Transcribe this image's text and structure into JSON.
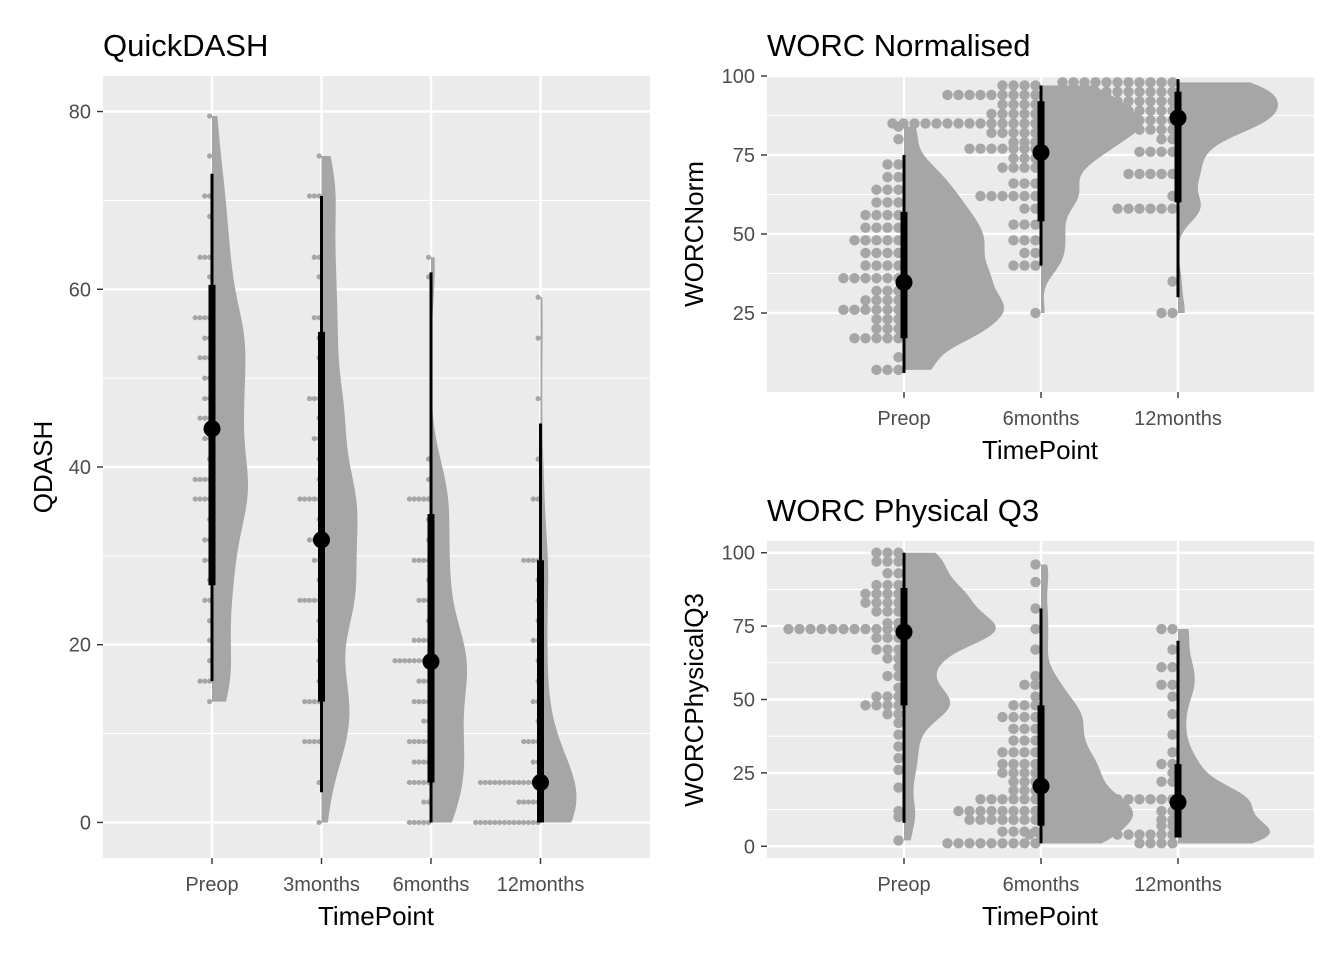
{
  "chart_data": [
    {
      "type": "raincloud",
      "title": "QuickDASH",
      "xlabel": "TimePoint",
      "ylabel": "QDASH",
      "categories": [
        "Preop",
        "3months",
        "6months",
        "12months"
      ],
      "yticks": [
        0,
        20,
        40,
        60,
        80
      ],
      "ylim": [
        -4,
        84
      ],
      "summary": [
        {
          "category": "Preop",
          "median": 44.3,
          "q1": 26.7,
          "q3": 60.5,
          "min": 15.9,
          "max": 73.0
        },
        {
          "category": "3months",
          "median": 31.8,
          "q1": 13.6,
          "q3": 55.2,
          "min": 3.4,
          "max": 70.5
        },
        {
          "category": "6months",
          "median": 18.1,
          "q1": 4.5,
          "q3": 34.7,
          "min": 0,
          "max": 61.9
        },
        {
          "category": "12months",
          "median": 4.5,
          "q1": 0,
          "q3": 29.5,
          "min": 0,
          "max": 44.9
        }
      ],
      "points": [
        {
          "category": "Preop",
          "values": [
            [
              79.5,
              1
            ],
            [
              75,
              1
            ],
            [
              70.5,
              2
            ],
            [
              68.2,
              1
            ],
            [
              63.6,
              3
            ],
            [
              61.4,
              1
            ],
            [
              56.8,
              4
            ],
            [
              54.5,
              2
            ],
            [
              52.3,
              3
            ],
            [
              50,
              2
            ],
            [
              47.7,
              2
            ],
            [
              45.5,
              3
            ],
            [
              43.2,
              2
            ],
            [
              40.9,
              1
            ],
            [
              38.6,
              4
            ],
            [
              36.4,
              4
            ],
            [
              34.1,
              1
            ],
            [
              31.8,
              2
            ],
            [
              29.5,
              2
            ],
            [
              27.3,
              1
            ],
            [
              25,
              2
            ],
            [
              22.7,
              1
            ],
            [
              20.5,
              1
            ],
            [
              18.2,
              1
            ],
            [
              15.9,
              3
            ],
            [
              13.6,
              1
            ]
          ]
        },
        {
          "category": "3months",
          "values": [
            [
              75,
              1
            ],
            [
              70.5,
              3
            ],
            [
              63.6,
              2
            ],
            [
              61.4,
              1
            ],
            [
              56.8,
              2
            ],
            [
              54.5,
              1
            ],
            [
              52.3,
              1
            ],
            [
              47.7,
              3
            ],
            [
              45.5,
              1
            ],
            [
              43.2,
              2
            ],
            [
              40.9,
              1
            ],
            [
              38.6,
              1
            ],
            [
              36.4,
              5
            ],
            [
              34.1,
              1
            ],
            [
              31.8,
              3
            ],
            [
              29.5,
              2
            ],
            [
              27.3,
              1
            ],
            [
              25,
              5
            ],
            [
              22.7,
              1
            ],
            [
              20.5,
              1
            ],
            [
              18.2,
              1
            ],
            [
              15.9,
              1
            ],
            [
              13.6,
              4
            ],
            [
              9.1,
              4
            ],
            [
              4.5,
              1
            ],
            [
              0,
              1
            ]
          ]
        },
        {
          "category": "6months",
          "values": [
            [
              63.6,
              1
            ],
            [
              61.4,
              1
            ],
            [
              40.9,
              1
            ],
            [
              38.6,
              1
            ],
            [
              36.4,
              5
            ],
            [
              34.1,
              1
            ],
            [
              31.8,
              1
            ],
            [
              29.5,
              4
            ],
            [
              27.3,
              1
            ],
            [
              25,
              3
            ],
            [
              22.7,
              1
            ],
            [
              20.5,
              4
            ],
            [
              18.2,
              8
            ],
            [
              15.9,
              3
            ],
            [
              13.6,
              4
            ],
            [
              11.4,
              2
            ],
            [
              9.1,
              5
            ],
            [
              6.8,
              4
            ],
            [
              4.5,
              5
            ],
            [
              2.3,
              2
            ],
            [
              0,
              5
            ]
          ]
        },
        {
          "category": "12months",
          "values": [
            [
              59.1,
              1
            ],
            [
              54.5,
              1
            ],
            [
              47.7,
              1
            ],
            [
              40.9,
              1
            ],
            [
              36.4,
              2
            ],
            [
              29.5,
              4
            ],
            [
              27.3,
              1
            ],
            [
              25,
              1
            ],
            [
              22.7,
              1
            ],
            [
              20.5,
              2
            ],
            [
              18.2,
              1
            ],
            [
              15.9,
              1
            ],
            [
              13.6,
              2
            ],
            [
              11.4,
              1
            ],
            [
              9.1,
              4
            ],
            [
              6.8,
              2
            ],
            [
              4.5,
              13
            ],
            [
              2.3,
              5
            ],
            [
              0,
              14
            ]
          ]
        }
      ]
    },
    {
      "type": "raincloud",
      "title": "WORC Normalised",
      "xlabel": "TimePoint",
      "ylabel": "WORCNorm",
      "categories": [
        "Preop",
        "6months",
        "12months"
      ],
      "yticks": [
        25,
        50,
        75,
        100
      ],
      "ylim": [
        0,
        100
      ],
      "summary": [
        {
          "category": "Preop",
          "median": 34.7,
          "q1": 17.0,
          "q3": 57.0,
          "min": 6.0,
          "max": 75.0
        },
        {
          "category": "6months",
          "median": 75.8,
          "q1": 54.0,
          "q3": 92.0,
          "min": 40.0,
          "max": 97.0
        },
        {
          "category": "12months",
          "median": 86.7,
          "q1": 60.0,
          "q3": 95.0,
          "min": 30.0,
          "max": 99.0
        }
      ],
      "points": [
        {
          "category": "Preop",
          "values": [
            [
              84,
              1
            ],
            [
              80,
              1
            ],
            [
              72,
              2
            ],
            [
              68,
              2
            ],
            [
              64,
              3
            ],
            [
              60,
              3
            ],
            [
              56,
              4
            ],
            [
              52,
              4
            ],
            [
              48,
              5
            ],
            [
              44,
              4
            ],
            [
              40,
              4
            ],
            [
              36,
              6
            ],
            [
              32,
              3
            ],
            [
              29,
              4
            ],
            [
              26,
              6
            ],
            [
              23,
              3
            ],
            [
              20,
              3
            ],
            [
              17,
              5
            ],
            [
              11,
              1
            ],
            [
              7,
              3
            ]
          ]
        },
        {
          "category": "6months",
          "values": [
            [
              97,
              4
            ],
            [
              94,
              9
            ],
            [
              91,
              4
            ],
            [
              88,
              5
            ],
            [
              85,
              14
            ],
            [
              82,
              5
            ],
            [
              79,
              3
            ],
            [
              77,
              7
            ],
            [
              74,
              3
            ],
            [
              71,
              4
            ],
            [
              66,
              3
            ],
            [
              62,
              6
            ],
            [
              58,
              2
            ],
            [
              53,
              3
            ],
            [
              48,
              3
            ],
            [
              44,
              2
            ],
            [
              40,
              3
            ],
            [
              25,
              1
            ]
          ]
        },
        {
          "category": "12months",
          "values": [
            [
              98,
              11
            ],
            [
              95,
              8
            ],
            [
              92,
              9
            ],
            [
              89,
              7
            ],
            [
              86,
              11
            ],
            [
              83,
              6
            ],
            [
              80,
              2
            ],
            [
              76,
              4
            ],
            [
              69,
              5
            ],
            [
              62,
              1
            ],
            [
              58,
              6
            ],
            [
              35,
              1
            ],
            [
              25,
              2
            ]
          ]
        }
      ]
    },
    {
      "type": "raincloud",
      "title": "WORC Physical Q3",
      "xlabel": "TimePoint",
      "ylabel": "WORCPhysicalQ3",
      "categories": [
        "Preop",
        "6months",
        "12months"
      ],
      "yticks": [
        0,
        25,
        50,
        75,
        100
      ],
      "ylim": [
        -4,
        104
      ],
      "summary": [
        {
          "category": "Preop",
          "median": 73.0,
          "q1": 48.0,
          "q3": 88.0,
          "min": 8.0,
          "max": 100.0
        },
        {
          "category": "6months",
          "median": 20.5,
          "q1": 7.0,
          "q3": 48.0,
          "min": 1.0,
          "max": 81.0
        },
        {
          "category": "12months",
          "median": 15.0,
          "q1": 3.0,
          "q3": 28.0,
          "min": 3.0,
          "max": 70.0
        }
      ],
      "points": [
        {
          "category": "Preop",
          "values": [
            [
              100,
              3
            ],
            [
              97,
              3
            ],
            [
              93,
              2
            ],
            [
              89,
              3
            ],
            [
              86,
              4
            ],
            [
              83,
              4
            ],
            [
              80,
              3
            ],
            [
              76,
              2
            ],
            [
              74,
              11
            ],
            [
              71,
              3
            ],
            [
              67,
              3
            ],
            [
              64,
              2
            ],
            [
              61,
              1
            ],
            [
              58,
              2
            ],
            [
              54,
              1
            ],
            [
              51,
              3
            ],
            [
              48,
              4
            ],
            [
              45,
              2
            ],
            [
              42,
              1
            ],
            [
              38,
              1
            ],
            [
              34,
              1
            ],
            [
              30,
              1
            ],
            [
              26,
              1
            ],
            [
              20,
              1
            ],
            [
              12,
              1
            ],
            [
              10,
              1
            ],
            [
              2,
              1
            ]
          ]
        },
        {
          "category": "6months",
          "values": [
            [
              96,
              1
            ],
            [
              90,
              1
            ],
            [
              81,
              1
            ],
            [
              74,
              1
            ],
            [
              67,
              1
            ],
            [
              58,
              1
            ],
            [
              55,
              2
            ],
            [
              51,
              1
            ],
            [
              48,
              3
            ],
            [
              44,
              4
            ],
            [
              40,
              3
            ],
            [
              36,
              3
            ],
            [
              32,
              4
            ],
            [
              28,
              4
            ],
            [
              25,
              4
            ],
            [
              22,
              3
            ],
            [
              19,
              3
            ],
            [
              16,
              6
            ],
            [
              12,
              8
            ],
            [
              9,
              7
            ],
            [
              5,
              4
            ],
            [
              1,
              9
            ]
          ]
        },
        {
          "category": "12months",
          "values": [
            [
              74,
              2
            ],
            [
              67,
              1
            ],
            [
              61,
              2
            ],
            [
              55,
              2
            ],
            [
              51,
              1
            ],
            [
              45,
              1
            ],
            [
              38,
              1
            ],
            [
              32,
              1
            ],
            [
              28,
              2
            ],
            [
              25,
              1
            ],
            [
              22,
              2
            ],
            [
              16,
              12
            ],
            [
              12,
              2
            ],
            [
              9,
              2
            ],
            [
              7,
              2
            ],
            [
              4,
              14
            ],
            [
              1,
              4
            ]
          ]
        }
      ]
    }
  ]
}
